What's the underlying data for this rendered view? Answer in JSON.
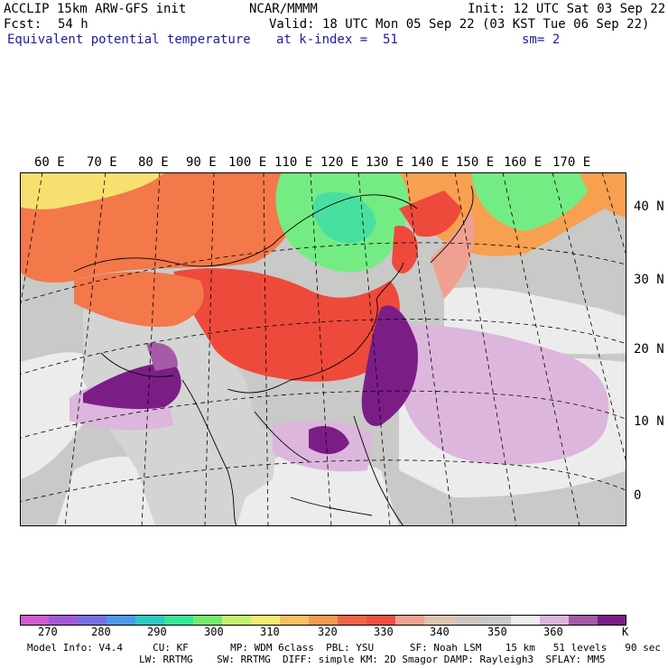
{
  "header": {
    "model": "ACCLIP 15km ARW-GFS init",
    "org": "NCAR/MMMM",
    "init": "Init: 12 UTC Sat 03 Sep 22",
    "fcst_label": "Fcst:",
    "fcst_value": "54 h",
    "valid": "Valid: 18 UTC Mon 05 Sep 22 (03 KST Tue 06 Sep 22)",
    "field": "Equivalent potential temperature",
    "level": "at k-index =  51",
    "smoothing": "sm= 2"
  },
  "map": {
    "lon_labels": [
      "60 E",
      "70 E",
      "80 E",
      "90 E",
      "100 E",
      "110 E",
      "120 E",
      "130 E",
      "140 E",
      "150 E",
      "160 E",
      "170 E"
    ],
    "lat_labels": [
      "40 N",
      "30 N",
      "20 N",
      "10 N",
      "0"
    ],
    "colors": {
      "ocean_gray": "#c9c9c7",
      "light_gray": "#ececec",
      "purple_light": "#dcb6dc",
      "purple_mid": "#a65aa8",
      "purple_dark": "#7a1e86",
      "red": "#ee4a3c",
      "orange_red": "#f3784a",
      "orange": "#f6a050",
      "yellow": "#f8e070",
      "green": "#74ec84",
      "cyan_green": "#48e0a0"
    }
  },
  "colorbar": {
    "ticks": [
      "270",
      "280",
      "290",
      "300",
      "310",
      "320",
      "330",
      "340",
      "350",
      "360"
    ],
    "unit": "K",
    "colors": [
      "#d05ad0",
      "#a05ad8",
      "#7a6ee6",
      "#4a9ae8",
      "#2ec8c0",
      "#36e694",
      "#74ec70",
      "#c4f270",
      "#f4ec70",
      "#f8c060",
      "#f69a52",
      "#f2644a",
      "#ee4e44",
      "#f0a090",
      "#ddc4b0",
      "#cfc6c0",
      "#c9c9c9",
      "#eeeeee",
      "#dcb6dc",
      "#a45aa6",
      "#7a1e86"
    ]
  },
  "footer": {
    "line1": "Model Info: V4.4     CU: KF       MP: WDM 6class  PBL: YSU      SF: Noah LSM    15 km   51 levels   90 sec",
    "line2": "LW: RRTMG    SW: RRTMG  DIFF: simple KM: 2D Smagor DAMP: Rayleigh3  SFLAY: MM5"
  }
}
